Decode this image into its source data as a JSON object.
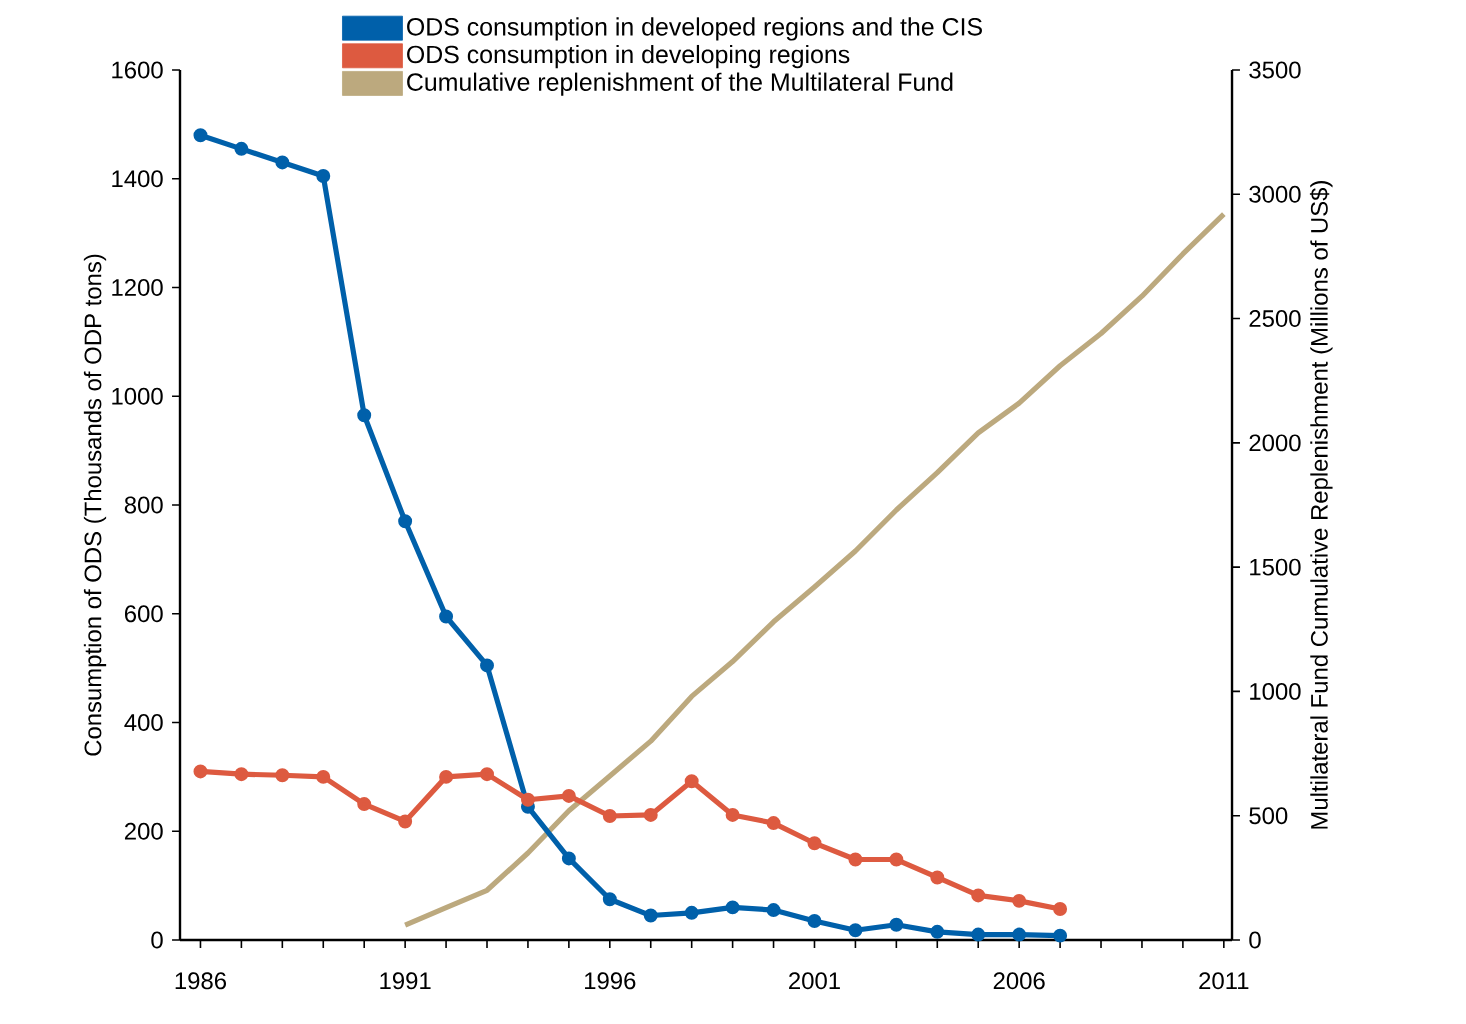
{
  "chart_data": {
    "type": "line",
    "ylabel": "Consumption of ODS (Thousands of ODP tons)",
    "y2label": "Multilateral Fund Cumulative Replenishment (Millions of US$)",
    "xlim": [
      1985.5,
      2011.2
    ],
    "xticks": [
      1986,
      {
        "value": 1987,
        "label": null
      },
      {
        "value": 1988,
        "label": null
      },
      {
        "value": 1989,
        "label": null
      },
      {
        "value": 1990,
        "label": null
      },
      1991,
      {
        "value": 1992,
        "label": null
      },
      {
        "value": 1993,
        "label": null
      },
      {
        "value": 1994,
        "label": null
      },
      {
        "value": 1995,
        "label": null
      },
      1996,
      {
        "value": 1997,
        "label": null
      },
      {
        "value": 1998,
        "label": null
      },
      {
        "value": 1999,
        "label": null
      },
      {
        "value": 2000,
        "label": null
      },
      2001,
      {
        "value": 2002,
        "label": null
      },
      {
        "value": 2003,
        "label": null
      },
      {
        "value": 2004,
        "label": null
      },
      {
        "value": 2005,
        "label": null
      },
      2006,
      {
        "value": 2007,
        "label": null
      },
      {
        "value": 2008,
        "label": null
      },
      {
        "value": 2009,
        "label": null
      },
      {
        "value": 2010,
        "label": null
      },
      2011
    ],
    "ylim": [
      0,
      1600
    ],
    "yticks": [
      0,
      200,
      400,
      600,
      800,
      1000,
      1200,
      1400,
      1600
    ],
    "y2lim": [
      0,
      3500
    ],
    "y2ticks": [
      0,
      500,
      1000,
      1500,
      2000,
      2500,
      3000,
      3500
    ],
    "legend": "top",
    "series": [
      {
        "name": "ODS consumption in developed regions and the CIS",
        "color": "#0060aa",
        "marker": "circle",
        "x": [
          1986,
          1987,
          1988,
          1989,
          1990,
          1991,
          1992,
          1993,
          1994,
          1995,
          1996,
          1997,
          1998,
          1999,
          2000,
          2001,
          2002,
          2003,
          2004,
          2005,
          2006,
          2007
        ],
        "values": [
          1480,
          1455,
          1430,
          1405,
          965,
          770,
          595,
          505,
          245,
          150,
          75,
          45,
          50,
          60,
          55,
          35,
          18,
          28,
          15,
          10,
          10,
          8
        ]
      },
      {
        "name": "ODS consumption in developing regions",
        "color": "#dd5a40",
        "marker": "circle",
        "x": [
          1986,
          1987,
          1988,
          1989,
          1990,
          1991,
          1992,
          1993,
          1994,
          1995,
          1996,
          1997,
          1998,
          1999,
          2000,
          2001,
          2002,
          2003,
          2004,
          2005,
          2006,
          2007
        ],
        "values": [
          310,
          305,
          303,
          300,
          250,
          218,
          300,
          305,
          258,
          265,
          228,
          230,
          292,
          230,
          215,
          178,
          148,
          148,
          115,
          82,
          72,
          57
        ]
      },
      {
        "name": "Cumulative replenishment of the Multilateral Fund",
        "color": "#bca97e",
        "marker": "none",
        "axis": "y2",
        "x": [
          1991,
          1992,
          1993,
          1994,
          1995,
          1996,
          1997,
          1998,
          1999,
          2000,
          2001,
          2002,
          2003,
          2004,
          2005,
          2006,
          2007,
          2008,
          2009,
          2010,
          2011
        ],
        "values": [
          60,
          130,
          200,
          350,
          520,
          660,
          800,
          980,
          1120,
          1280,
          1420,
          1565,
          1730,
          1880,
          2040,
          2160,
          2310,
          2440,
          2590,
          2760,
          2920
        ]
      }
    ]
  }
}
